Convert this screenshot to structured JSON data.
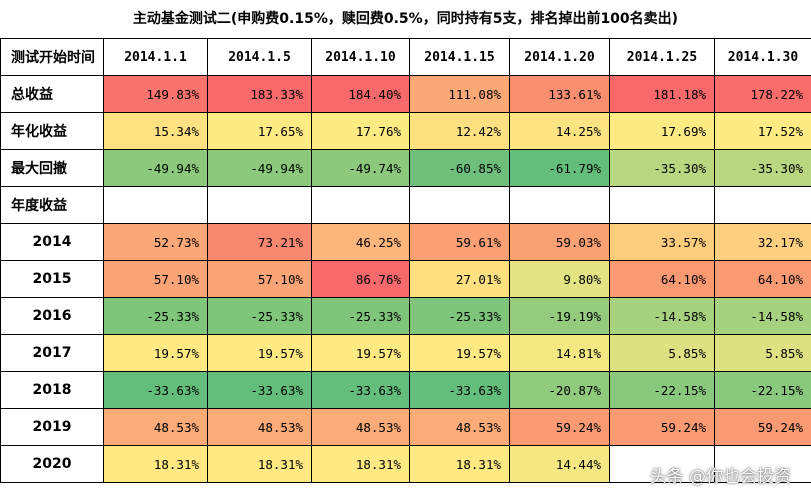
{
  "title": "主动基金测试二(申购费0.15%，赎回费0.5%，同时持有5支，排名掉出前100名卖出)",
  "header": {
    "label": "测试开始时间",
    "dates": [
      "2014.1.1",
      "2014.1.5",
      "2014.1.10",
      "2014.1.15",
      "2014.1.20",
      "2014.1.25",
      "2014.1.30"
    ]
  },
  "rows": [
    {
      "label": "总收益",
      "values": [
        "149.83%",
        "183.33%",
        "184.40%",
        "111.08%",
        "133.61%",
        "181.18%",
        "178.22%"
      ],
      "colors": [
        "#f8736c",
        "#f8696b",
        "#f8696b",
        "#fba877",
        "#f98e71",
        "#f8696b",
        "#f86d6b"
      ]
    },
    {
      "label": "年化收益",
      "values": [
        "15.34%",
        "17.65%",
        "17.76%",
        "12.42%",
        "14.25%",
        "17.69%",
        "17.52%"
      ],
      "colors": [
        "#fee282",
        "#feeb84",
        "#feeb84",
        "#fde181",
        "#fde482",
        "#feeb84",
        "#feeb84"
      ]
    },
    {
      "label": "最大回撤",
      "values": [
        "-49.94%",
        "-49.94%",
        "-49.74%",
        "-60.85%",
        "-61.79%",
        "-35.30%",
        "-35.30%"
      ],
      "colors": [
        "#8cc97d",
        "#8cc97d",
        "#8cc97d",
        "#6dbf7b",
        "#63be7b",
        "#b9d780",
        "#b9d780"
      ]
    },
    {
      "label": "年度收益",
      "values": [
        "",
        "",
        "",
        "",
        "",
        "",
        ""
      ],
      "colors": [
        "#ffffff",
        "#ffffff",
        "#ffffff",
        "#ffffff",
        "#ffffff",
        "#ffffff",
        "#ffffff"
      ]
    },
    {
      "label": "2014",
      "values": [
        "52.73%",
        "73.21%",
        "46.25%",
        "59.61%",
        "59.03%",
        "33.57%",
        "32.17%"
      ],
      "colors": [
        "#fba777",
        "#f98870",
        "#fcb57a",
        "#faa074",
        "#faa174",
        "#fdcd7e",
        "#fdcf7f"
      ]
    },
    {
      "label": "2015",
      "values": [
        "57.10%",
        "57.10%",
        "86.76%",
        "27.01%",
        "9.80%",
        "64.10%",
        "64.10%"
      ],
      "colors": [
        "#fba576",
        "#fba576",
        "#f8696b",
        "#fee081",
        "#e3e383",
        "#fa9a73",
        "#fa9a73"
      ]
    },
    {
      "label": "2016",
      "values": [
        "-25.33%",
        "-25.33%",
        "-25.33%",
        "-25.33%",
        "-19.19%",
        "-14.58%",
        "-14.58%"
      ],
      "colors": [
        "#7fc57c",
        "#7fc57c",
        "#7fc57c",
        "#7fc57c",
        "#94cb7d",
        "#a6d17f",
        "#a6d17f"
      ]
    },
    {
      "label": "2017",
      "values": [
        "19.57%",
        "19.57%",
        "19.57%",
        "19.57%",
        "14.81%",
        "5.85%",
        "5.85%"
      ],
      "colors": [
        "#fee983",
        "#fee983",
        "#fee983",
        "#fee983",
        "#f4e883",
        "#dde182",
        "#dde182"
      ]
    },
    {
      "label": "2018",
      "values": [
        "-33.63%",
        "-33.63%",
        "-33.63%",
        "-33.63%",
        "-20.87%",
        "-22.15%",
        "-22.15%"
      ],
      "colors": [
        "#63be7b",
        "#63be7b",
        "#63be7b",
        "#63be7b",
        "#8fca7d",
        "#8ac87d",
        "#8ac87d"
      ]
    },
    {
      "label": "2019",
      "values": [
        "48.53%",
        "48.53%",
        "48.53%",
        "48.53%",
        "59.24%",
        "59.24%",
        "59.24%"
      ],
      "colors": [
        "#fbab77",
        "#fbab77",
        "#fbab77",
        "#fbab77",
        "#fa9a73",
        "#fa9a73",
        "#fa9a73"
      ]
    },
    {
      "label": "2020",
      "values": [
        "18.31%",
        "18.31%",
        "18.31%",
        "18.31%",
        "14.44%",
        "",
        ""
      ],
      "colors": [
        "#fee983",
        "#fee983",
        "#fee983",
        "#fee983",
        "#f5e883",
        "#ffffff",
        "#ffffff"
      ]
    }
  ],
  "watermark": "头条 @你也会投资"
}
